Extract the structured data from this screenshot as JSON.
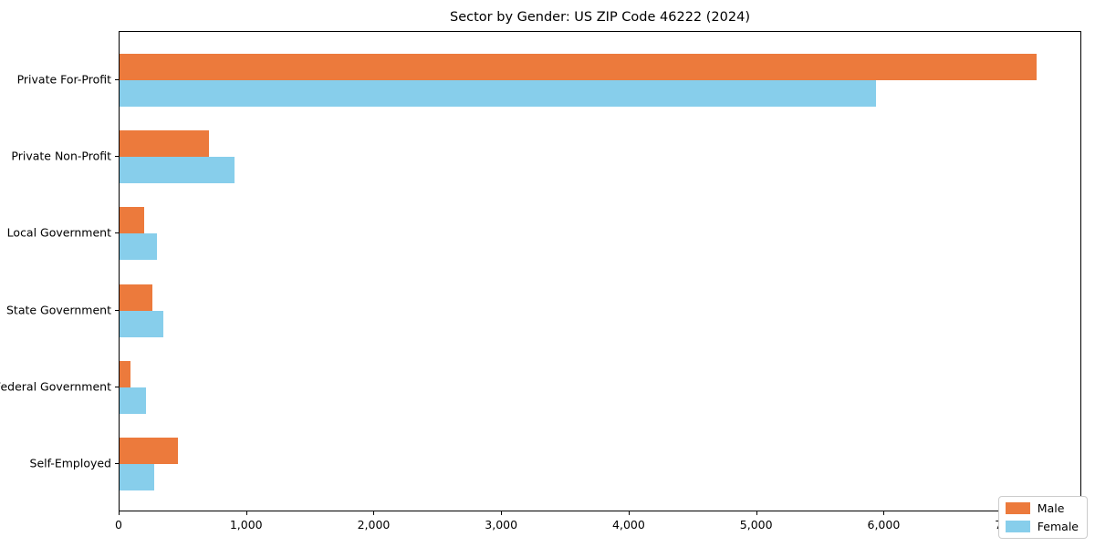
{
  "title": "Sector by Gender: US ZIP Code 46222 (2024)",
  "chart_data": {
    "type": "bar",
    "orientation": "horizontal",
    "title": "Sector by Gender: US ZIP Code 46222 (2024)",
    "xlabel": "",
    "ylabel": "",
    "categories": [
      "Private For-Profit",
      "Private Non-Profit",
      "Local Government",
      "State Government",
      "Federal Government",
      "Self-Employed"
    ],
    "series": [
      {
        "name": "Male",
        "color": "#ec7a3c",
        "values": [
          7190,
          700,
          195,
          260,
          85,
          460
        ]
      },
      {
        "name": "Female",
        "color": "#87ceeb",
        "values": [
          5930,
          900,
          290,
          340,
          210,
          270
        ]
      }
    ],
    "xlim": [
      0,
      7550
    ],
    "x_ticks": [
      0,
      1000,
      2000,
      3000,
      4000,
      5000,
      6000,
      7000
    ],
    "x_tick_labels": [
      "0",
      "1,000",
      "2,000",
      "3,000",
      "4,000",
      "5,000",
      "6,000",
      "7,000"
    ],
    "legend_position": "lower right",
    "grid": false,
    "frame": "full-box"
  },
  "legend": {
    "items": [
      {
        "label": "Male"
      },
      {
        "label": "Female"
      }
    ]
  }
}
